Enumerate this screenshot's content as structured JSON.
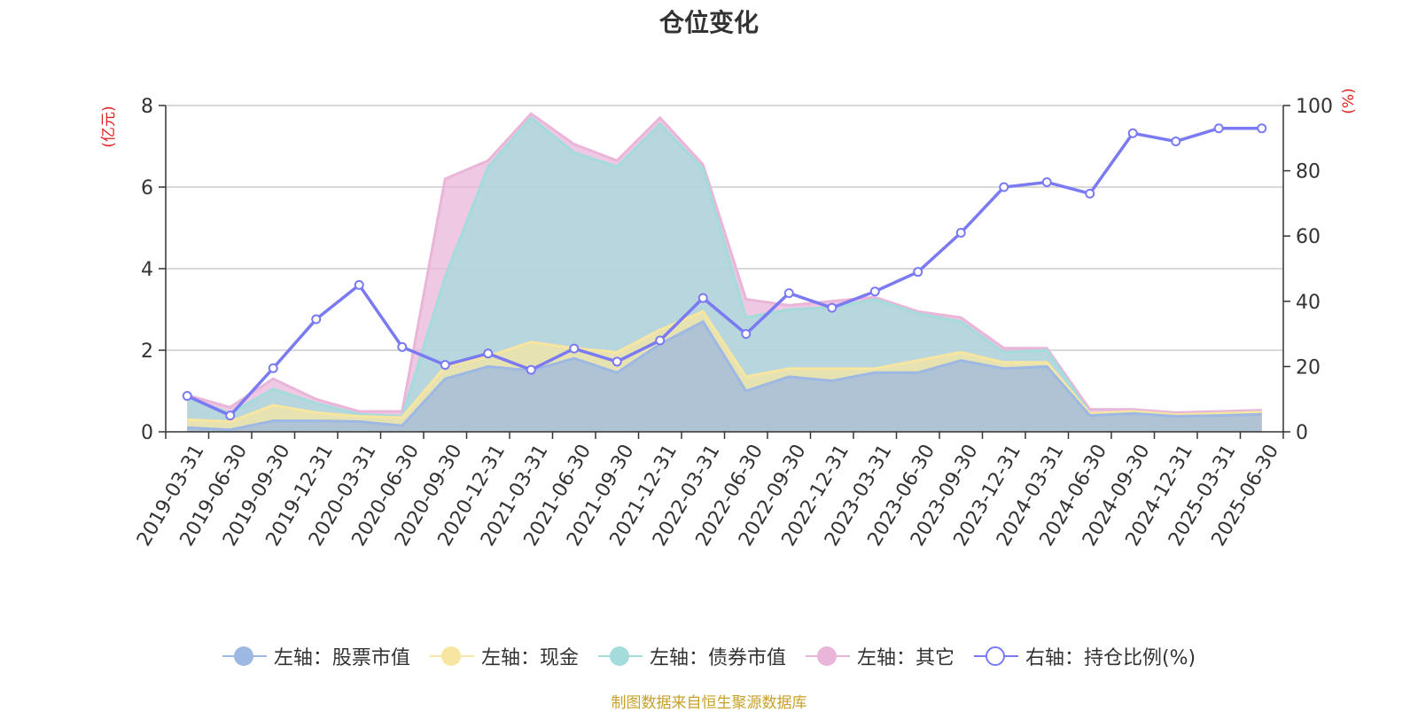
{
  "chart_title": "仓位变化",
  "footer_source": "制图数据来自恒生聚源数据库",
  "chart_data": {
    "type": "area",
    "title": "仓位变化",
    "categories": [
      "2019-03-31",
      "2019-06-30",
      "2019-09-30",
      "2019-12-31",
      "2020-03-31",
      "2020-06-30",
      "2020-09-30",
      "2020-12-31",
      "2021-03-31",
      "2021-06-30",
      "2021-09-30",
      "2021-12-31",
      "2022-03-31",
      "2022-06-30",
      "2022-09-30",
      "2022-12-31",
      "2023-03-31",
      "2023-06-30",
      "2023-09-30",
      "2023-12-31",
      "2024-03-31",
      "2024-06-30",
      "2024-09-30",
      "2024-12-31",
      "2025-03-31",
      "2025-06-30"
    ],
    "left_axis": {
      "label": "(亿元)",
      "ylim": [
        0,
        8
      ],
      "ticks": [
        "0",
        "2",
        "4",
        "6",
        "8"
      ]
    },
    "right_axis": {
      "label": "(%)",
      "ylim": [
        0,
        100
      ],
      "ticks": [
        "0",
        "20",
        "40",
        "60",
        "80",
        "100"
      ]
    },
    "grid": true,
    "legend_position": "bottom",
    "series": [
      {
        "name": "左轴：股票市值",
        "axis": "left",
        "type": "stacked-area",
        "color": "#9db8e2",
        "values": [
          0.1,
          0.05,
          0.27,
          0.27,
          0.25,
          0.15,
          1.3,
          1.6,
          1.5,
          1.8,
          1.45,
          2.15,
          2.7,
          1.0,
          1.35,
          1.25,
          1.45,
          1.45,
          1.75,
          1.55,
          1.6,
          0.4,
          0.45,
          0.38,
          0.4,
          0.43
        ]
      },
      {
        "name": "左轴：现金",
        "axis": "left",
        "type": "stacked-area",
        "color": "#f7e6a2",
        "values": [
          0.2,
          0.2,
          0.38,
          0.2,
          0.13,
          0.2,
          0.3,
          0.25,
          0.7,
          0.25,
          0.5,
          0.35,
          0.25,
          0.35,
          0.2,
          0.3,
          0.1,
          0.3,
          0.2,
          0.15,
          0.1,
          0.05,
          0.05,
          0.04,
          0.05,
          0.05
        ]
      },
      {
        "name": "左轴：债券市值",
        "axis": "left",
        "type": "stacked-area",
        "color": "#a4dbdb",
        "values": [
          0.55,
          0.2,
          0.4,
          0.23,
          0.05,
          0.03,
          2.2,
          4.65,
          5.5,
          4.8,
          4.55,
          5.05,
          3.5,
          1.45,
          1.45,
          1.5,
          1.7,
          1.15,
          0.75,
          0.25,
          0.3,
          0.0,
          0.0,
          0.0,
          0.0,
          0.0
        ]
      },
      {
        "name": "左轴：其它",
        "axis": "left",
        "type": "stacked-area",
        "color": "#e9b6d9",
        "values": [
          0.05,
          0.15,
          0.25,
          0.1,
          0.07,
          0.12,
          2.4,
          0.15,
          0.1,
          0.2,
          0.15,
          0.15,
          0.1,
          0.45,
          0.1,
          0.15,
          0.05,
          0.05,
          0.1,
          0.1,
          0.05,
          0.1,
          0.05,
          0.05,
          0.05,
          0.05
        ]
      },
      {
        "name": "右轴：持仓比例(%)",
        "axis": "right",
        "type": "line",
        "color": "#7a7af2",
        "values": [
          11,
          5,
          19.5,
          34.5,
          45,
          26,
          20.5,
          24,
          19,
          25.5,
          21.5,
          28,
          41,
          30,
          42.5,
          38,
          43,
          49,
          61,
          75,
          76.5,
          73,
          91.5,
          89,
          93,
          93
        ]
      }
    ]
  }
}
